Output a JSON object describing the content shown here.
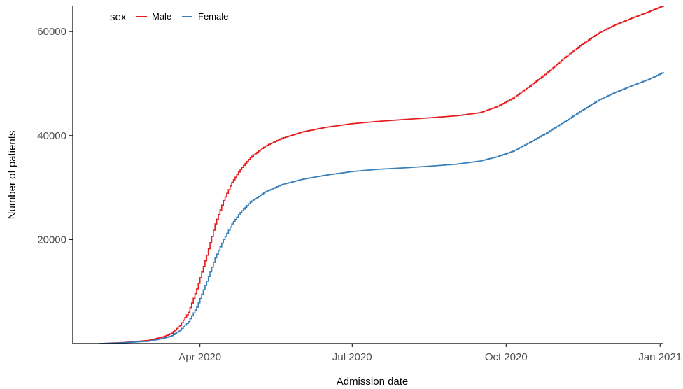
{
  "chart_data": {
    "type": "line",
    "xlabel": "Admission date",
    "ylabel": "Number of patients",
    "x_ticks": [
      "Apr 2020",
      "Jul 2020",
      "Oct 2020",
      "Jan 2021"
    ],
    "y_ticks": [
      "20000",
      "40000",
      "60000"
    ],
    "xlim": [
      "2020-01-16",
      "2021-01-03"
    ],
    "ylim": [
      0,
      65000
    ],
    "grid": false,
    "legend": {
      "title": "sex",
      "placement": "top-left",
      "orientation": "horizontal"
    },
    "series": [
      {
        "name": "Male",
        "color": "#e41a1c",
        "points": [
          [
            "2020-02-01",
            0
          ],
          [
            "2020-02-15",
            200
          ],
          [
            "2020-03-01",
            600
          ],
          [
            "2020-03-10",
            1300
          ],
          [
            "2020-03-15",
            2000
          ],
          [
            "2020-03-20",
            3500
          ],
          [
            "2020-03-25",
            6000
          ],
          [
            "2020-03-30",
            10500
          ],
          [
            "2020-04-05",
            17000
          ],
          [
            "2020-04-10",
            23000
          ],
          [
            "2020-04-15",
            27500
          ],
          [
            "2020-04-20",
            31000
          ],
          [
            "2020-04-25",
            33500
          ],
          [
            "2020-05-01",
            35800
          ],
          [
            "2020-05-10",
            38000
          ],
          [
            "2020-05-20",
            39500
          ],
          [
            "2020-06-01",
            40700
          ],
          [
            "2020-06-15",
            41600
          ],
          [
            "2020-07-01",
            42300
          ],
          [
            "2020-07-15",
            42700
          ],
          [
            "2020-08-01",
            43100
          ],
          [
            "2020-08-15",
            43400
          ],
          [
            "2020-09-01",
            43800
          ],
          [
            "2020-09-15",
            44400
          ],
          [
            "2020-09-25",
            45500
          ],
          [
            "2020-10-05",
            47200
          ],
          [
            "2020-10-15",
            49500
          ],
          [
            "2020-10-25",
            52000
          ],
          [
            "2020-11-05",
            55000
          ],
          [
            "2020-11-15",
            57500
          ],
          [
            "2020-11-25",
            59700
          ],
          [
            "2020-12-05",
            61300
          ],
          [
            "2020-12-15",
            62600
          ],
          [
            "2020-12-25",
            63800
          ],
          [
            "2021-01-03",
            65000
          ]
        ]
      },
      {
        "name": "Female",
        "color": "#377eb8",
        "points": [
          [
            "2020-02-01",
            0
          ],
          [
            "2020-02-15",
            150
          ],
          [
            "2020-03-01",
            450
          ],
          [
            "2020-03-10",
            1000
          ],
          [
            "2020-03-15",
            1500
          ],
          [
            "2020-03-20",
            2600
          ],
          [
            "2020-03-25",
            4200
          ],
          [
            "2020-03-30",
            7000
          ],
          [
            "2020-04-05",
            12000
          ],
          [
            "2020-04-10",
            16500
          ],
          [
            "2020-04-15",
            20000
          ],
          [
            "2020-04-20",
            23000
          ],
          [
            "2020-04-25",
            25200
          ],
          [
            "2020-05-01",
            27200
          ],
          [
            "2020-05-10",
            29200
          ],
          [
            "2020-05-20",
            30600
          ],
          [
            "2020-06-01",
            31600
          ],
          [
            "2020-06-15",
            32400
          ],
          [
            "2020-07-01",
            33100
          ],
          [
            "2020-07-15",
            33500
          ],
          [
            "2020-08-01",
            33800
          ],
          [
            "2020-08-15",
            34100
          ],
          [
            "2020-09-01",
            34500
          ],
          [
            "2020-09-15",
            35100
          ],
          [
            "2020-09-25",
            35900
          ],
          [
            "2020-10-05",
            37000
          ],
          [
            "2020-10-15",
            38700
          ],
          [
            "2020-10-25",
            40500
          ],
          [
            "2020-11-05",
            42700
          ],
          [
            "2020-11-15",
            44800
          ],
          [
            "2020-11-25",
            46800
          ],
          [
            "2020-12-05",
            48300
          ],
          [
            "2020-12-15",
            49600
          ],
          [
            "2020-12-25",
            50800
          ],
          [
            "2021-01-03",
            52200
          ]
        ]
      }
    ]
  }
}
